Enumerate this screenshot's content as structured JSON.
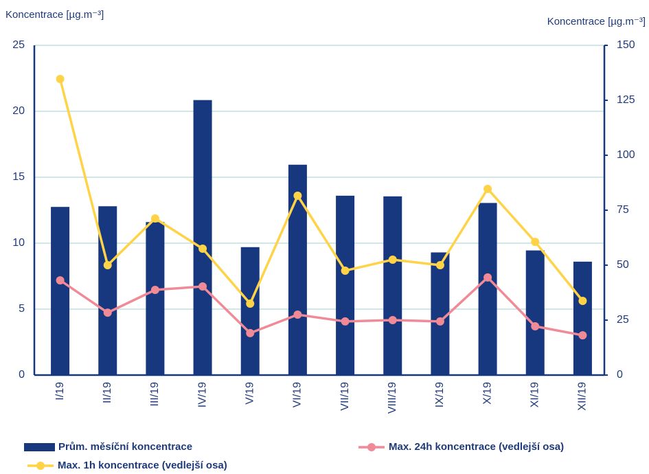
{
  "chart_data": {
    "type": "bar_line",
    "y_label": "Koncentrace [µg.m⁻³]",
    "y2_label": "Koncentrace [µg.m⁻³]",
    "categories": [
      "I/19",
      "II/19",
      "III/19",
      "IV/19",
      "V/19",
      "VI/19",
      "VII/19",
      "VIII/19",
      "IX/19",
      "X/19",
      "XI/19",
      "XII/19"
    ],
    "series": [
      {
        "name": "Prům. měsíční koncentrace",
        "type": "bar",
        "color": "#17387f",
        "values": [
          12.75,
          12.8,
          11.6,
          20.85,
          9.7,
          15.95,
          13.6,
          13.55,
          9.3,
          13.05,
          9.45,
          8.6
        ]
      },
      {
        "name": "Max. 24h koncentrace (vedlejší osa)",
        "type": "line",
        "axis": "y2",
        "color": "#f08a96",
        "values": [
          43.1,
          28.4,
          38.75,
          40.3,
          19.1,
          27.5,
          24.4,
          25,
          24.4,
          44.4,
          22.2,
          18.1
        ]
      },
      {
        "name": "Max. 1h koncentrace (vedlejší osa)",
        "type": "line",
        "axis": "y2",
        "color": "#ffd347",
        "values": [
          134.7,
          50,
          71.25,
          57.5,
          32.5,
          81.6,
          47.5,
          52.5,
          50,
          84.7,
          60.6,
          33.75
        ]
      }
    ],
    "ylim": [
      0,
      25
    ],
    "yticks": [
      0,
      5,
      10,
      15,
      20,
      25
    ],
    "y2lim": [
      0,
      150
    ],
    "y2ticks": [
      0,
      25,
      50,
      75,
      100,
      125,
      150
    ],
    "grid": true
  }
}
